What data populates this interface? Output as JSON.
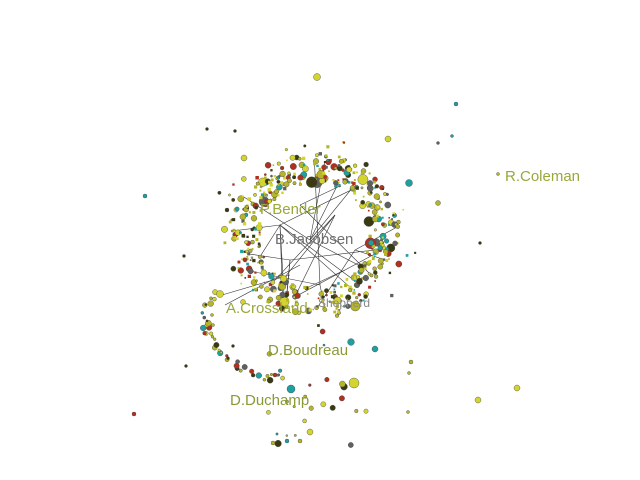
{
  "labels": [
    {
      "id": "r-coleman",
      "text": "R.Coleman",
      "color": "#9aa83a"
    },
    {
      "id": "p-bender",
      "text": "P.Bender",
      "color": "#9aa83a"
    },
    {
      "id": "b-jacobsen",
      "text": "B.Jacobsen",
      "color": "#6f6f6f"
    },
    {
      "id": "a-crossland",
      "text": "A.Crossland",
      "color": "#9aa83a"
    },
    {
      "id": "d-boudreau",
      "text": "D.Boudreau",
      "color": "#8a9a36"
    },
    {
      "id": "d-duchamp",
      "text": "D.Duchamp",
      "color": "#8a9a36"
    },
    {
      "id": "shepherd",
      "text": "Shepherd",
      "color": "#8a8a8a"
    }
  ],
  "palette": {
    "olive": "#b5b52a",
    "yellow": "#d4d430",
    "teal": "#1fa0a0",
    "dark": "#3a3a10",
    "red": "#b03020",
    "gray": "#606060"
  }
}
